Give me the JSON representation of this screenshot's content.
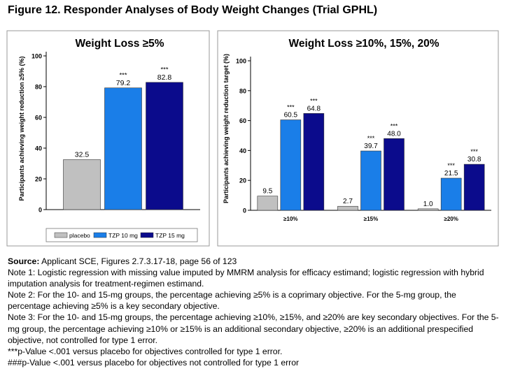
{
  "figure_title": "Figure 12. Responder Analyses of Body Weight Changes (Trial GPHL)",
  "colors": {
    "placebo": "#c0c0c0",
    "tzp10": "#1a7ee8",
    "tzp15": "#0b0b8c"
  },
  "legend": [
    {
      "label": "placebo",
      "color": "#c0c0c0"
    },
    {
      "label": "TZP 10 mg",
      "color": "#1a7ee8"
    },
    {
      "label": "TZP 15 mg",
      "color": "#0b0b8c"
    }
  ],
  "chart_data": [
    {
      "type": "bar",
      "title": "Weight Loss ≥5%",
      "ylabel": "Participants achieving weight reduction ≥5% (%)",
      "xlabel": "",
      "ylim": [
        0,
        100
      ],
      "yticks": [
        0,
        20,
        40,
        60,
        80,
        100
      ],
      "categories": [
        ""
      ],
      "series": [
        {
          "name": "placebo",
          "values": [
            32.5
          ],
          "labels": [
            "32.5"
          ],
          "sig": [
            ""
          ]
        },
        {
          "name": "TZP 10 mg",
          "values": [
            79.2
          ],
          "labels": [
            "79.2"
          ],
          "sig": [
            "***"
          ]
        },
        {
          "name": "TZP 15 mg",
          "values": [
            82.8
          ],
          "labels": [
            "82.8"
          ],
          "sig": [
            "***"
          ]
        }
      ],
      "grid": false
    },
    {
      "type": "bar",
      "title": "Weight Loss ≥10%, 15%, 20%",
      "ylabel": "Participants achieving weight reduction target (%)",
      "xlabel": "",
      "ylim": [
        0,
        100
      ],
      "yticks": [
        0,
        20,
        40,
        60,
        80,
        100
      ],
      "categories": [
        "≥10%",
        "≥15%",
        "≥20%"
      ],
      "series": [
        {
          "name": "placebo",
          "values": [
            9.5,
            2.7,
            1.0
          ],
          "labels": [
            "9.5",
            "2.7",
            "1.0"
          ],
          "sig": [
            "",
            "",
            ""
          ]
        },
        {
          "name": "TZP 10 mg",
          "values": [
            60.5,
            39.7,
            21.5
          ],
          "labels": [
            "60.5",
            "39.7",
            "21.5"
          ],
          "sig": [
            "***",
            "***",
            "***"
          ]
        },
        {
          "name": "TZP 15 mg",
          "values": [
            64.8,
            48.0,
            30.8
          ],
          "labels": [
            "64.8",
            "48.0",
            "30.8"
          ],
          "sig": [
            "***",
            "***",
            "***"
          ]
        }
      ],
      "grid": false
    }
  ],
  "notes": {
    "source_label": "Source:",
    "source_text": " Applicant SCE, Figures 2.7.3.17-18, page 56 of 123",
    "lines": [
      "Note 1: Logistic regression with missing value imputed by MMRM analysis for efficacy estimand; logistic regression with hybrid",
      "imputation analysis for treatment-regimen estimand.",
      "Note 2: For the 10- and 15-mg groups, the percentage achieving ≥5% is a coprimary objective. For the 5-mg group, the",
      "percentage achieving ≥5% is a key secondary objective.",
      "Note 3: For the 10- and 15-mg groups, the percentage achieving ≥10%, ≥15%, and ≥20% are key secondary objectives. For the 5-",
      "mg group, the percentage achieving ≥10% or ≥15% is an additional secondary objective, ≥20% is an additional prespecified",
      "objective, not controlled for type 1 error.",
      "***p-Value <.001 versus placebo for objectives controlled for type 1 error.",
      "###p-Value <.001 versus placebo for objectives not controlled for type 1 error"
    ]
  }
}
